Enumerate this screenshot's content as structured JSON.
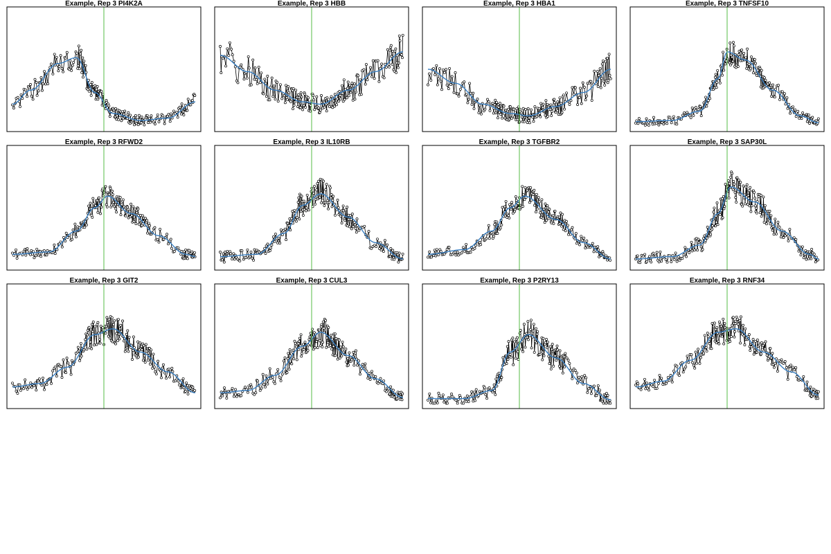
{
  "figure": {
    "panel_count": 12,
    "columns": 4
  },
  "style": {
    "point_color": "#000000",
    "line_color": "#000000",
    "smooth_color": "#3a7fc1",
    "divider_color": "#55bb44"
  },
  "chart_data": [
    {
      "type": "line",
      "title": "Example, Rep 3 PI4K2A",
      "xlabel": "",
      "ylabel": "",
      "grid": false,
      "smooth": {
        "x": [
          0,
          0.1,
          0.25,
          0.35,
          0.45,
          0.55,
          0.7,
          0.85,
          1
        ],
        "y": [
          0.2,
          0.32,
          0.55,
          0.6,
          0.3,
          0.12,
          0.06,
          0.08,
          0.22
        ]
      },
      "noise": 0.12,
      "divider_x": 0.5
    },
    {
      "type": "line",
      "title": "Example, Rep 3 HBB",
      "xlabel": "",
      "ylabel": "",
      "grid": false,
      "smooth": {
        "x": [
          0,
          0.15,
          0.3,
          0.45,
          0.55,
          0.7,
          0.85,
          1
        ],
        "y": [
          0.62,
          0.48,
          0.32,
          0.22,
          0.2,
          0.32,
          0.48,
          0.65
        ]
      },
      "noise": 0.15,
      "divider_x": 0.5
    },
    {
      "type": "line",
      "title": "Example, Rep 3 HBA1",
      "xlabel": "",
      "ylabel": "",
      "grid": false,
      "smooth": {
        "x": [
          0,
          0.15,
          0.3,
          0.45,
          0.55,
          0.7,
          0.85,
          1
        ],
        "y": [
          0.5,
          0.38,
          0.2,
          0.12,
          0.1,
          0.18,
          0.3,
          0.5
        ]
      },
      "noise": 0.16,
      "divider_x": 0.5
    },
    {
      "type": "line",
      "title": "Example, Rep 3 TNFSF10",
      "xlabel": "",
      "ylabel": "",
      "grid": false,
      "smooth": {
        "x": [
          0,
          0.2,
          0.35,
          0.45,
          0.5,
          0.6,
          0.75,
          0.9,
          1
        ],
        "y": [
          0.05,
          0.06,
          0.14,
          0.42,
          0.65,
          0.58,
          0.32,
          0.1,
          0.04
        ]
      },
      "noise": 0.1,
      "divider_x": 0.5
    },
    {
      "type": "line",
      "title": "Example, Rep 3 RFWD2",
      "xlabel": "",
      "ylabel": "",
      "grid": false,
      "smooth": {
        "x": [
          0,
          0.2,
          0.35,
          0.45,
          0.52,
          0.65,
          0.8,
          0.95,
          1
        ],
        "y": [
          0.1,
          0.12,
          0.3,
          0.5,
          0.6,
          0.45,
          0.26,
          0.1,
          0.08
        ]
      },
      "noise": 0.1,
      "divider_x": 0.5
    },
    {
      "type": "line",
      "title": "Example, Rep 3 IL10RB",
      "xlabel": "",
      "ylabel": "",
      "grid": false,
      "smooth": {
        "x": [
          0,
          0.2,
          0.35,
          0.45,
          0.55,
          0.7,
          0.85,
          1
        ],
        "y": [
          0.08,
          0.1,
          0.28,
          0.52,
          0.62,
          0.42,
          0.2,
          0.06
        ]
      },
      "noise": 0.12,
      "divider_x": 0.5
    },
    {
      "type": "line",
      "title": "Example, Rep 3 TGFBR2",
      "xlabel": "",
      "ylabel": "",
      "grid": false,
      "smooth": {
        "x": [
          0,
          0.2,
          0.35,
          0.45,
          0.53,
          0.7,
          0.85,
          1
        ],
        "y": [
          0.1,
          0.14,
          0.3,
          0.5,
          0.6,
          0.4,
          0.2,
          0.06
        ]
      },
      "noise": 0.1,
      "divider_x": 0.5
    },
    {
      "type": "line",
      "title": "Example, Rep 3 SAP30L",
      "xlabel": "",
      "ylabel": "",
      "grid": false,
      "smooth": {
        "x": [
          0,
          0.2,
          0.35,
          0.45,
          0.52,
          0.65,
          0.8,
          0.95,
          1
        ],
        "y": [
          0.06,
          0.08,
          0.18,
          0.45,
          0.68,
          0.55,
          0.3,
          0.1,
          0.06
        ]
      },
      "noise": 0.12,
      "divider_x": 0.5
    },
    {
      "type": "line",
      "title": "Example, Rep 3 GIT2",
      "xlabel": "",
      "ylabel": "",
      "grid": false,
      "smooth": {
        "x": [
          0,
          0.15,
          0.3,
          0.45,
          0.55,
          0.7,
          0.85,
          1
        ],
        "y": [
          0.15,
          0.18,
          0.32,
          0.6,
          0.65,
          0.45,
          0.28,
          0.1
        ]
      },
      "noise": 0.12,
      "divider_x": 0.5
    },
    {
      "type": "line",
      "title": "Example, Rep 3 CUL3",
      "xlabel": "",
      "ylabel": "",
      "grid": false,
      "smooth": {
        "x": [
          0,
          0.15,
          0.3,
          0.45,
          0.55,
          0.7,
          0.85,
          1
        ],
        "y": [
          0.1,
          0.12,
          0.25,
          0.5,
          0.62,
          0.42,
          0.22,
          0.06
        ]
      },
      "noise": 0.12,
      "divider_x": 0.5
    },
    {
      "type": "line",
      "title": "Example, Rep 3 P2RY13",
      "xlabel": "",
      "ylabel": "",
      "grid": false,
      "smooth": {
        "x": [
          0,
          0.2,
          0.35,
          0.45,
          0.55,
          0.7,
          0.85,
          1
        ],
        "y": [
          0.05,
          0.05,
          0.12,
          0.45,
          0.6,
          0.4,
          0.18,
          0.04
        ]
      },
      "noise": 0.14,
      "divider_x": 0.5
    },
    {
      "type": "line",
      "title": "Example, Rep 3 RNF34",
      "xlabel": "",
      "ylabel": "",
      "grid": false,
      "smooth": {
        "x": [
          0,
          0.15,
          0.3,
          0.45,
          0.55,
          0.7,
          0.85,
          1
        ],
        "y": [
          0.15,
          0.2,
          0.38,
          0.62,
          0.65,
          0.45,
          0.28,
          0.08
        ]
      },
      "noise": 0.11,
      "divider_x": 0.5
    }
  ]
}
